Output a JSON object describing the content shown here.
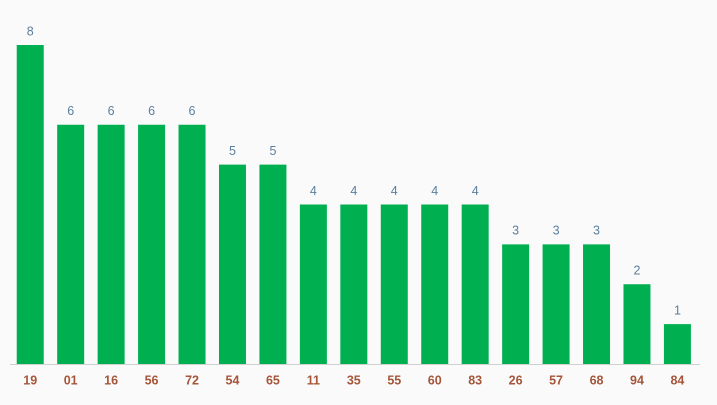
{
  "chart_data": {
    "type": "bar",
    "categories": [
      "19",
      "01",
      "16",
      "56",
      "72",
      "54",
      "65",
      "11",
      "35",
      "55",
      "60",
      "83",
      "26",
      "57",
      "68",
      "94",
      "84"
    ],
    "values": [
      8,
      6,
      6,
      6,
      6,
      5,
      5,
      4,
      4,
      4,
      4,
      4,
      3,
      3,
      3,
      2,
      1
    ],
    "color": "#00b050",
    "ylim": [
      0,
      8
    ]
  }
}
